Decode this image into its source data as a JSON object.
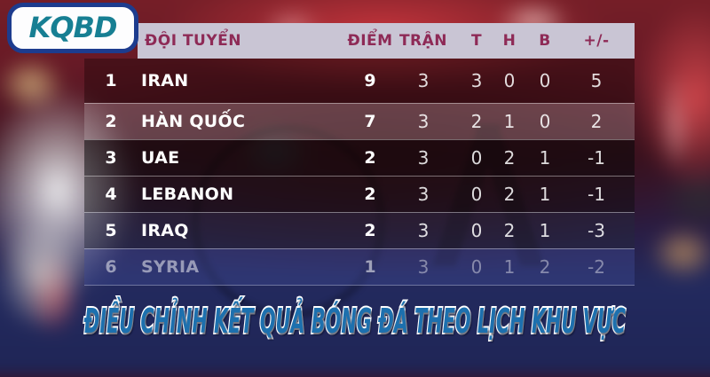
{
  "logo": {
    "text": "KQBD"
  },
  "table": {
    "headers": {
      "team": "ĐỘI TUYỂN",
      "points": "ĐIỂM",
      "played": "TRẬN",
      "win": "T",
      "draw": "H",
      "loss": "B",
      "diff": "+/-"
    },
    "rows": [
      {
        "rank": "1",
        "team": "IRAN",
        "points": "9",
        "played": "3",
        "win": "3",
        "draw": "0",
        "loss": "0",
        "diff": "5"
      },
      {
        "rank": "2",
        "team": "HÀN QUỐC",
        "points": "7",
        "played": "3",
        "win": "2",
        "draw": "1",
        "loss": "0",
        "diff": "2"
      },
      {
        "rank": "3",
        "team": "UAE",
        "points": "2",
        "played": "3",
        "win": "0",
        "draw": "2",
        "loss": "1",
        "diff": "-1"
      },
      {
        "rank": "4",
        "team": "LEBANON",
        "points": "2",
        "played": "3",
        "win": "0",
        "draw": "2",
        "loss": "1",
        "diff": "-1"
      },
      {
        "rank": "5",
        "team": "IRAQ",
        "points": "2",
        "played": "3",
        "win": "0",
        "draw": "2",
        "loss": "1",
        "diff": "-3"
      },
      {
        "rank": "6",
        "team": "SYRIA",
        "points": "1",
        "played": "3",
        "win": "0",
        "draw": "1",
        "loss": "2",
        "diff": "-2"
      }
    ]
  },
  "banner": {
    "title": "ĐIỀU CHỈNH KẾT QUẢ BÓNG ĐÁ THEO LỊCH KHU VỰC"
  },
  "colors": {
    "header_bg": "#c9c5d4",
    "header_text": "#8e2a56",
    "logo_text": "#177f93",
    "logo_border": "#1d3c8e",
    "banner_text": "#1d70ae",
    "banner_outline": "#ffffff",
    "banner_bg": "#232a5e",
    "row_text": "#ffffff"
  },
  "chart_data": {
    "type": "table",
    "title": "ĐIỀU CHỈNH KẾT QUẢ BÓNG ĐÁ THEO LỊCH KHU VỰC",
    "columns": [
      "#",
      "ĐỘI TUYỂN",
      "ĐIỂM",
      "TRẬN",
      "T",
      "H",
      "B",
      "+/-"
    ],
    "rows": [
      [
        1,
        "IRAN",
        9,
        3,
        3,
        0,
        0,
        5
      ],
      [
        2,
        "HÀN QUỐC",
        7,
        3,
        2,
        1,
        0,
        2
      ],
      [
        3,
        "UAE",
        2,
        3,
        0,
        2,
        1,
        -1
      ],
      [
        4,
        "LEBANON",
        2,
        3,
        0,
        2,
        1,
        -1
      ],
      [
        5,
        "IRAQ",
        2,
        3,
        0,
        2,
        1,
        -3
      ],
      [
        6,
        "SYRIA",
        1,
        3,
        0,
        1,
        2,
        -2
      ]
    ]
  }
}
